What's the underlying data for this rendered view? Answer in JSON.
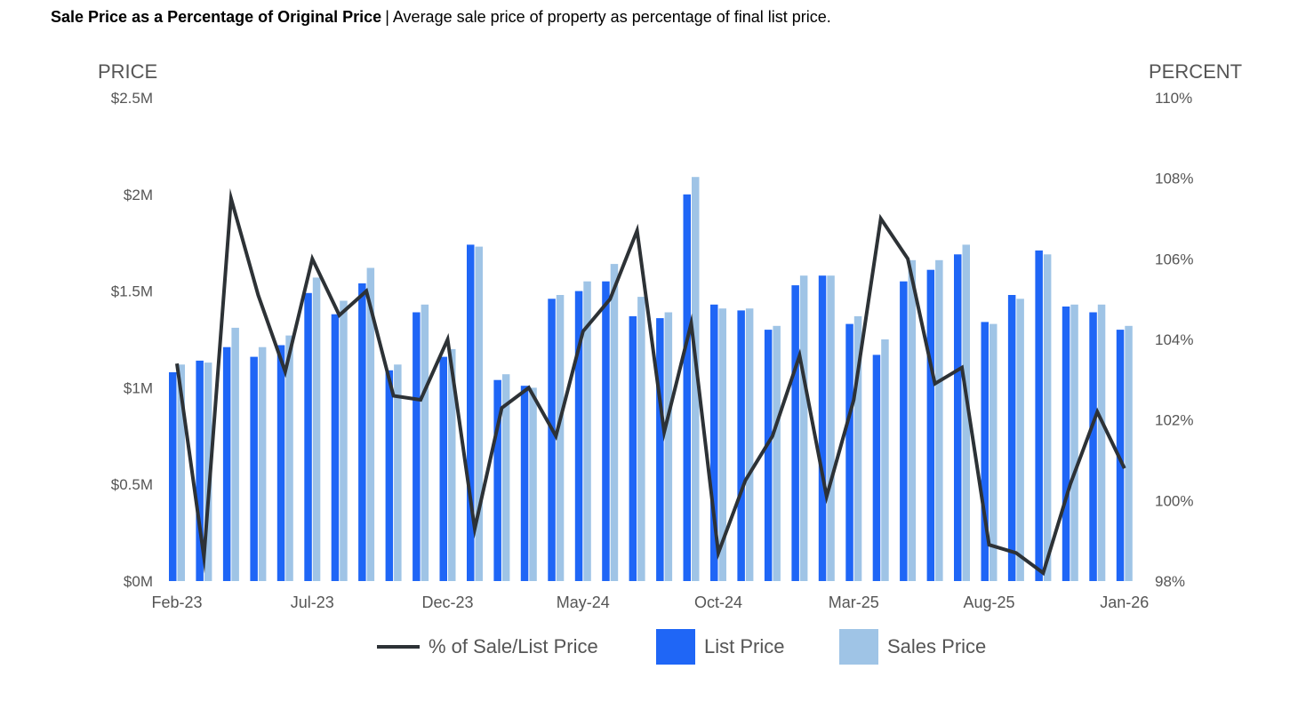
{
  "header": {
    "title": "Sale Price as a Percentage of Original Price",
    "separator": "|",
    "subtitle": "Average sale price of property as percentage of final list price."
  },
  "colors": {
    "list": "#1f66f6",
    "sales": "#9fc4e6",
    "line": "#2d3236",
    "axis_text": "#555555"
  },
  "legend": {
    "line_label": "% of Sale/List Price",
    "list_label": "List Price",
    "sales_label": "Sales Price"
  },
  "chart_data": {
    "type": "bar+line",
    "left_axis_title": "PRICE",
    "right_axis_title": "PERCENT",
    "left_ticks": [
      "$0M",
      "$0.5M",
      "$1M",
      "$1.5M",
      "$2M",
      "$2.5M"
    ],
    "right_ticks": [
      "98%",
      "100%",
      "102%",
      "104%",
      "106%",
      "108%",
      "110%"
    ],
    "left_range": [
      0,
      2.5
    ],
    "right_range": [
      98,
      110
    ],
    "x_tick_labels": [
      "Feb-23",
      "Jul-23",
      "Dec-23",
      "May-24",
      "Oct-24",
      "Mar-25",
      "Aug-25",
      "Jan-26"
    ],
    "x_tick_indices": [
      0,
      5,
      10,
      15,
      20,
      25,
      30,
      35
    ],
    "months": 36,
    "series": [
      {
        "name": "List Price",
        "unit": "M",
        "values": [
          1.08,
          1.14,
          1.21,
          1.16,
          1.22,
          1.49,
          1.38,
          1.54,
          1.09,
          1.39,
          1.16,
          1.74,
          1.04,
          1.01,
          1.46,
          1.5,
          1.55,
          1.37,
          1.36,
          2.0,
          1.43,
          1.4,
          1.3,
          1.53,
          1.58,
          1.33,
          1.17,
          1.55,
          1.61,
          1.69,
          1.34,
          1.48,
          1.71,
          1.42,
          1.39,
          1.3
        ]
      },
      {
        "name": "Sales Price",
        "unit": "M",
        "values": [
          1.12,
          1.13,
          1.31,
          1.21,
          1.27,
          1.57,
          1.45,
          1.62,
          1.12,
          1.43,
          1.2,
          1.73,
          1.07,
          1.0,
          1.48,
          1.55,
          1.64,
          1.47,
          1.39,
          2.09,
          1.41,
          1.41,
          1.32,
          1.58,
          1.58,
          1.37,
          1.25,
          1.66,
          1.66,
          1.74,
          1.33,
          1.46,
          1.69,
          1.43,
          1.43,
          1.32
        ]
      },
      {
        "name": "% of Sale/List Price",
        "unit": "%",
        "values": [
          103.4,
          98.6,
          107.5,
          105.1,
          103.2,
          106.0,
          104.6,
          105.2,
          102.6,
          102.5,
          104.0,
          99.3,
          102.3,
          102.8,
          101.6,
          104.2,
          105.0,
          106.7,
          101.7,
          104.4,
          98.7,
          100.5,
          101.6,
          103.6,
          100.1,
          102.5,
          107.0,
          106.0,
          102.9,
          103.3,
          98.9,
          98.7,
          98.2,
          100.4,
          102.2,
          100.8
        ]
      }
    ]
  }
}
